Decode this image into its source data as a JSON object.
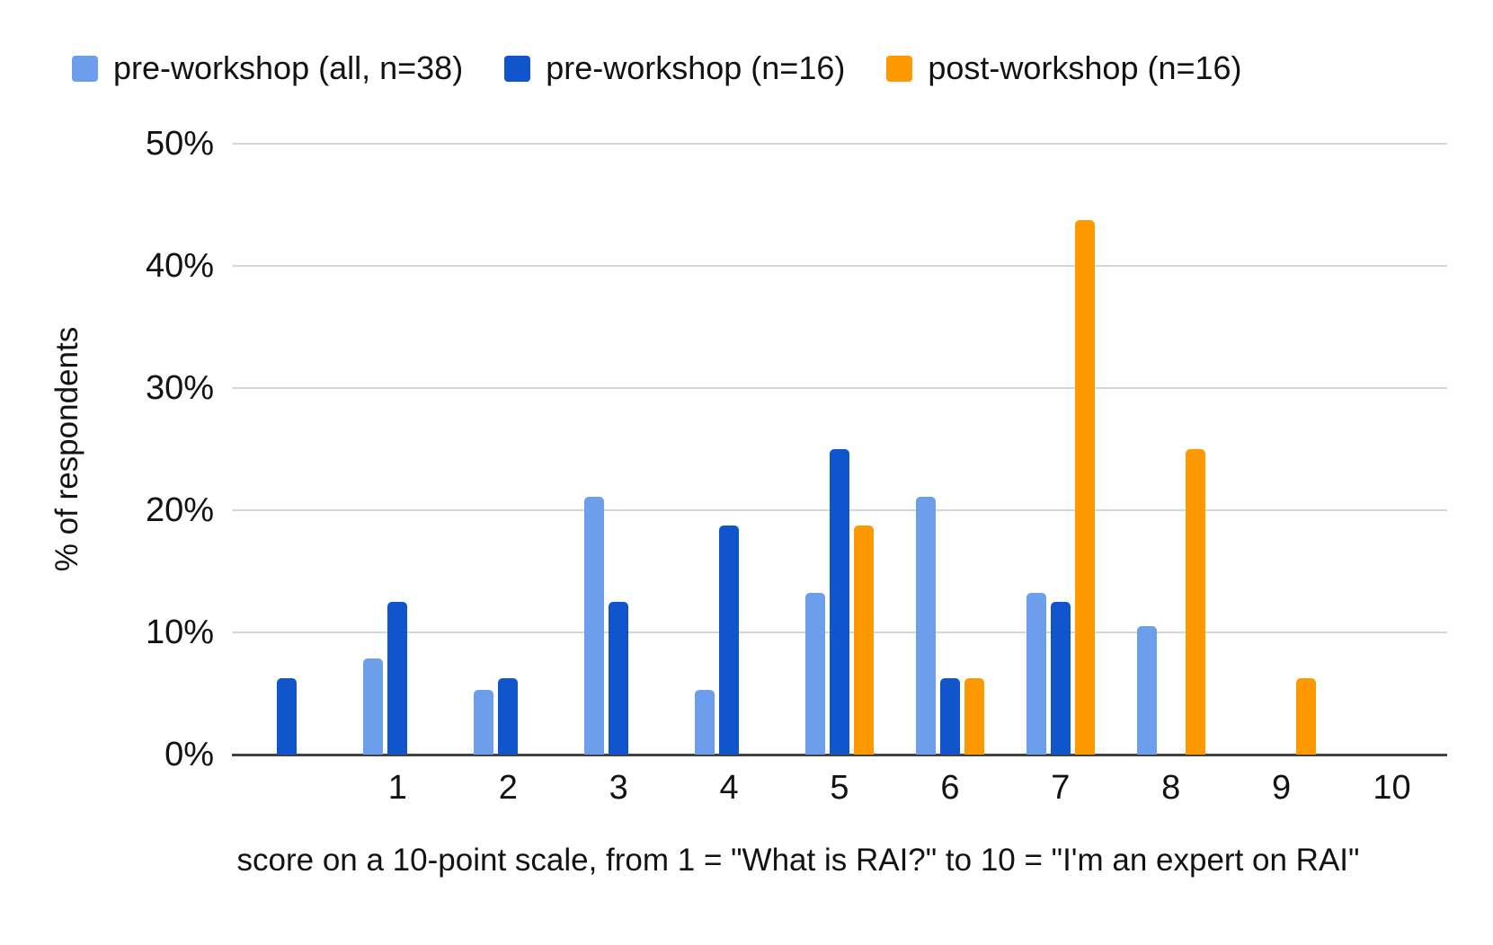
{
  "chart_data": {
    "type": "bar",
    "title": "",
    "categories": [
      "",
      "1",
      "2",
      "3",
      "4",
      "5",
      "6",
      "7",
      "8",
      "9",
      "10"
    ],
    "series": [
      {
        "key": "pre-workshop-all",
        "name": "pre-workshop (all, n=38)",
        "color": "#6d9eeb",
        "values": [
          0,
          7.9,
          5.3,
          21.1,
          5.3,
          13.2,
          21.1,
          13.2,
          10.5,
          0,
          0
        ]
      },
      {
        "key": "pre-workshop-16",
        "name": "pre-workshop (n=16)",
        "color": "#1155cc",
        "values": [
          6.25,
          12.5,
          6.25,
          12.5,
          18.75,
          25,
          6.25,
          12.5,
          0,
          0,
          0
        ]
      },
      {
        "key": "post-workshop-16",
        "name": "post-workshop (n=16)",
        "color": "#ff9900",
        "values": [
          0,
          0,
          0,
          0,
          0,
          18.75,
          6.25,
          43.75,
          25,
          6.25,
          0
        ]
      }
    ],
    "xlabel": "score on a 10-point scale, from 1 = \"What is RAI?\" to 10 = \"I'm an expert on RAI\"",
    "ylabel": "% of respondents",
    "ylim": [
      0,
      50
    ],
    "y_ticks": [
      "0%",
      "10%",
      "20%",
      "30%",
      "40%",
      "50%"
    ],
    "y_tick_values": [
      0,
      10,
      20,
      30,
      40,
      50
    ],
    "grid": true,
    "legend_position": "top",
    "gridline_color": "#d6d6d6",
    "axis_line_color": "#424242",
    "text_color": "#121212"
  }
}
